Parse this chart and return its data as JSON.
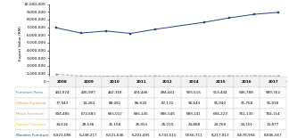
{
  "years": [
    2008,
    2009,
    2010,
    2011,
    2012,
    2014,
    2015,
    2016,
    2017
  ],
  "series": {
    "Furniture Parts": {
      "values": [
        441974,
        436997,
        442318,
        474446,
        494441,
        505515,
        513444,
        546788,
        589762
      ],
      "color": "#4472c4",
      "marker": "o",
      "linewidth": 0.7,
      "markersize": 2.0,
      "linestyle": "-",
      "zorder": 3
    },
    "Others Furniture": {
      "values": [
        77943,
        74283,
        88081,
        86630,
        87110,
        90643,
        91040,
        91768,
        91918
      ],
      "color": "#ed7d31",
      "marker": "s",
      "linewidth": 0.7,
      "markersize": 2.0,
      "linestyle": "-",
      "zorder": 3
    },
    "Metal Furniture": {
      "values": [
        904485,
        672683,
        665017,
        666145,
        686545,
        689141,
        694223,
        701130,
        704114
      ],
      "color": "#a5a5a5",
      "marker": "^",
      "linewidth": 0.7,
      "markersize": 2.0,
      "linestyle": "--",
      "zorder": 3
    },
    "Rattan Furniture": {
      "values": [
        34616,
        29636,
        31158,
        25051,
        25010,
        24888,
        24766,
        24101,
        23877
      ],
      "color": "#ffc000",
      "marker": "o",
      "linewidth": 0.7,
      "markersize": 2.0,
      "linestyle": "-",
      "zorder": 3
    },
    "Wooden Furniture": {
      "values": [
        6921086,
        6248217,
        6521646,
        6201495,
        6741515,
        7656711,
        8217813,
        8678994,
        8946567
      ],
      "color": "#264478",
      "marker": "s",
      "linewidth": 0.7,
      "markersize": 2.0,
      "linestyle": "-",
      "zorder": 5
    }
  },
  "ylabel": "Export Value (RM)",
  "ylim": [
    0,
    10000000
  ],
  "yticks": [
    0,
    1000000,
    2000000,
    3000000,
    4000000,
    5000000,
    6000000,
    7000000,
    8000000,
    9000000,
    10000000
  ],
  "background_color": "#ffffff",
  "table_col_labels": [
    "2008",
    "2009",
    "2010",
    "2011",
    "2012",
    "2014",
    "2015",
    "2016",
    "2017"
  ],
  "table_rows": {
    "Furniture Parts": [
      441974,
      436997,
      442318,
      474446,
      494441,
      505515,
      513444,
      546788,
      589762
    ],
    "Others Furniture": [
      77943,
      74283,
      88081,
      86630,
      87110,
      90643,
      91040,
      91768,
      91918
    ],
    "Metal Furniture": [
      904485,
      672683,
      665017,
      666145,
      686545,
      689141,
      694223,
      701130,
      704114
    ],
    "Rattan Furniture": [
      34616,
      29636,
      31158,
      25051,
      25010,
      24888,
      24766,
      24101,
      23877
    ],
    "Wooden Furniture": [
      6921086,
      6248217,
      6521646,
      6201495,
      6741515,
      7656711,
      8217813,
      8678994,
      8946567
    ]
  },
  "row_colors": [
    "#4472c4",
    "#ed7d31",
    "#a5a5a5",
    "#ffc000",
    "#264478"
  ],
  "row_markers": [
    "–●",
    "–■",
    "–▲",
    "–●",
    "–■"
  ]
}
